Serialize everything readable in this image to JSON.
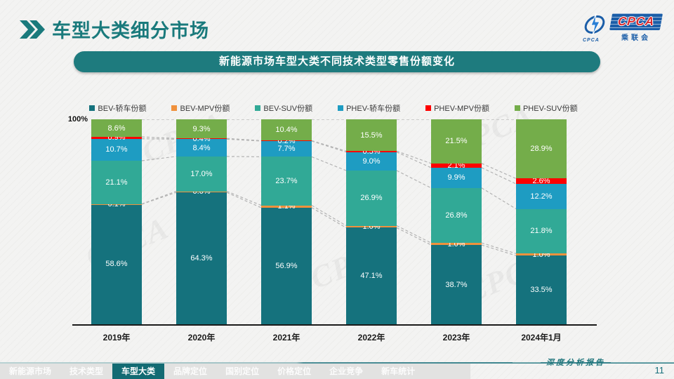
{
  "header": {
    "title": "车型大类细分市场"
  },
  "logo": {
    "acronym": "CPCA",
    "cn": "乘联会",
    "emblem_sub": "CPCA"
  },
  "banner": {
    "text": "新能源市场车型大类不同技术类型零售份额变化"
  },
  "chart_data": {
    "type": "bar",
    "subtype": "stacked-percentage-column",
    "title": "新能源市场车型大类不同技术类型零售份额变化",
    "categories": [
      "2019年",
      "2020年",
      "2021年",
      "2022年",
      "2023年",
      "2024年1月"
    ],
    "series": [
      {
        "name": "BEV-轿车份额",
        "color": "#15727d",
        "values": [
          58.6,
          64.3,
          56.9,
          47.1,
          38.7,
          33.5
        ]
      },
      {
        "name": "BEV-MPV份额",
        "color": "#f0913c",
        "values": [
          0.1,
          0.6,
          1.1,
          1.0,
          1.0,
          1.0
        ]
      },
      {
        "name": "BEV-SUV份额",
        "color": "#31a996",
        "values": [
          21.1,
          17.0,
          23.7,
          26.9,
          26.8,
          21.8
        ]
      },
      {
        "name": "PHEV-轿车份额",
        "color": "#1e9cc2",
        "values": [
          10.7,
          8.4,
          7.7,
          9.0,
          9.9,
          12.2
        ]
      },
      {
        "name": "PHEV-MPV份额",
        "color": "#fe0000",
        "values": [
          0.9,
          0.4,
          0.2,
          0.5,
          2.1,
          2.6
        ]
      },
      {
        "name": "PHEV-SUV份额",
        "color": "#74ad4a",
        "values": [
          8.6,
          9.3,
          10.4,
          15.5,
          21.5,
          28.9
        ]
      }
    ],
    "value_suffix": "%",
    "ylim": [
      0,
      100
    ],
    "axis_max_label": "100%",
    "grid": false,
    "legend_position": "top",
    "connector_lines": true
  },
  "footer": {
    "nav": [
      {
        "label": "新能源市场",
        "active": false
      },
      {
        "label": "技术类型",
        "active": false
      },
      {
        "label": "车型大类",
        "active": true
      },
      {
        "label": "品牌定位",
        "active": false
      },
      {
        "label": "国别定位",
        "active": false
      },
      {
        "label": "价格定位",
        "active": false
      },
      {
        "label": "企业竞争",
        "active": false
      },
      {
        "label": "新车统计",
        "active": false
      }
    ],
    "report_label": "深度分析报告",
    "page": "11"
  },
  "watermark": {
    "text": "CPCA"
  }
}
